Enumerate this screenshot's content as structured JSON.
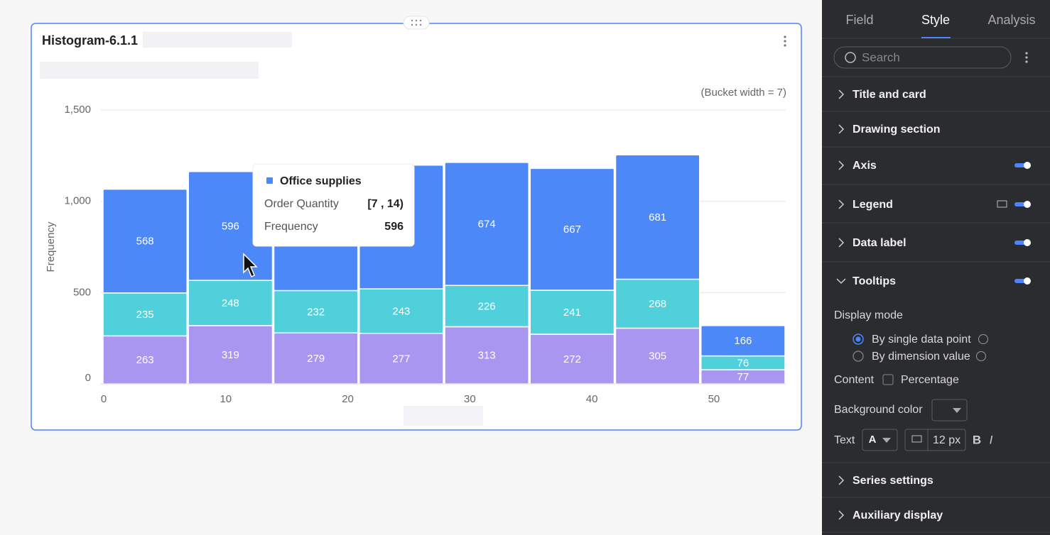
{
  "chart_data": {
    "type": "histogram",
    "title": "Histogram-6.1.1",
    "annotation": "(Bucket width = 7)",
    "y_label": "Frequency",
    "bins": [
      0,
      7,
      14,
      21,
      28,
      35,
      42,
      49,
      56
    ],
    "series": [
      {
        "color": "#a996f0",
        "values": [
          263,
          319,
          279,
          277,
          313,
          272,
          305,
          77
        ]
      },
      {
        "color": "#4fd0da",
        "values": [
          235,
          248,
          232,
          243,
          226,
          241,
          268,
          76
        ]
      },
      {
        "name": "Office supplies",
        "color": "#4c88f8",
        "values": [
          568,
          596,
          687,
          678,
          674,
          667,
          681,
          166
        ]
      }
    ],
    "xlim": [
      0,
      56
    ],
    "xticks": [
      0,
      10,
      20,
      30,
      40,
      50
    ],
    "ylim": [
      0,
      1500
    ],
    "yticks": [
      0,
      {
        "value": 500,
        "label": "500"
      },
      {
        "value": 1000,
        "label": "1,000"
      },
      {
        "value": 1500,
        "label": "1,500"
      }
    ],
    "grid": true,
    "stacked": true
  },
  "tooltip": {
    "x_label": "Order Quantity",
    "x_value": "[7 , 14)"
  },
  "panel": {
    "tabs": [
      "Field",
      "Style",
      "Analysis"
    ],
    "search_placeholder": "Search",
    "sections": [
      "Title and card",
      "Drawing section",
      "Axis",
      "Legend",
      "Data label",
      "Tooltips",
      "Series settings",
      "Auxiliary display"
    ],
    "tooltips_settings": {
      "display_mode_label": "Display mode",
      "display_options": [
        "By single data point",
        "By dimension value"
      ],
      "content_label": "Content",
      "percentage_label": "Percentage",
      "background_color_label": "Background color",
      "text_label": "Text",
      "font_letter": "A",
      "font_size": "12 px",
      "bold": "B",
      "italic": "I"
    }
  }
}
